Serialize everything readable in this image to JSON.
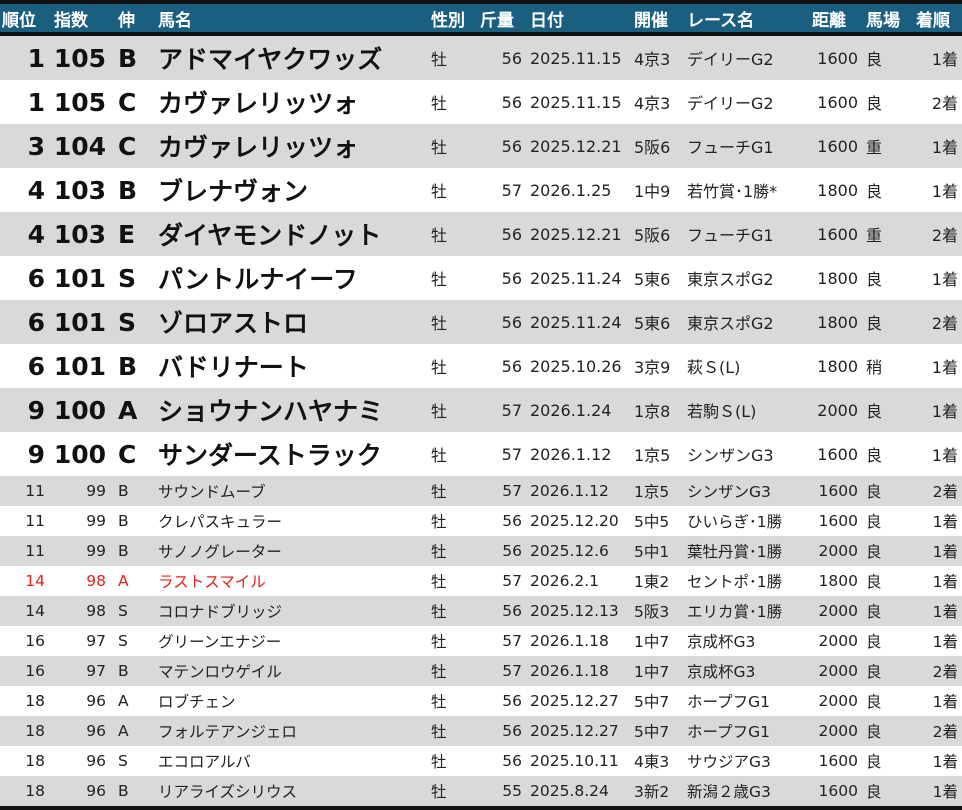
{
  "header": {
    "rank": "順位",
    "index": "指数",
    "growth": "伸",
    "name": "馬名",
    "sex": "性別",
    "weight": "斤量",
    "date": "日付",
    "meeting": "開催",
    "race": "レース名",
    "distance": "距離",
    "track": "馬場",
    "finish": "着順"
  },
  "colors": {
    "header_bg": "#1a5e80",
    "row_alt": "#d9d9d9",
    "highlight": "#e8201e"
  },
  "rows": [
    {
      "rank": "1",
      "index": "105",
      "growth": "B",
      "name": "アドマイヤクワッズ",
      "sex": "牡",
      "weight": "56",
      "date": "2025.11.15",
      "meeting": "4京3",
      "race": "デイリーG2",
      "distance": "1600",
      "track": "良",
      "finish": "1着"
    },
    {
      "rank": "1",
      "index": "105",
      "growth": "C",
      "name": "カヴァレリッツォ",
      "sex": "牡",
      "weight": "56",
      "date": "2025.11.15",
      "meeting": "4京3",
      "race": "デイリーG2",
      "distance": "1600",
      "track": "良",
      "finish": "2着"
    },
    {
      "rank": "3",
      "index": "104",
      "growth": "C",
      "name": "カヴァレリッツォ",
      "sex": "牡",
      "weight": "56",
      "date": "2025.12.21",
      "meeting": "5阪6",
      "race": "フューチG1",
      "distance": "1600",
      "track": "重",
      "finish": "1着"
    },
    {
      "rank": "4",
      "index": "103",
      "growth": "B",
      "name": "ブレナヴォン",
      "sex": "牡",
      "weight": "57",
      "date": "2026.1.25",
      "meeting": "1中9",
      "race": "若竹賞･1勝*",
      "distance": "1800",
      "track": "良",
      "finish": "1着"
    },
    {
      "rank": "4",
      "index": "103",
      "growth": "E",
      "name": "ダイヤモンドノット",
      "sex": "牡",
      "weight": "56",
      "date": "2025.12.21",
      "meeting": "5阪6",
      "race": "フューチG1",
      "distance": "1600",
      "track": "重",
      "finish": "2着"
    },
    {
      "rank": "6",
      "index": "101",
      "growth": "S",
      "name": "パントルナイーフ",
      "sex": "牡",
      "weight": "56",
      "date": "2025.11.24",
      "meeting": "5東6",
      "race": "東京スポG2",
      "distance": "1800",
      "track": "良",
      "finish": "1着"
    },
    {
      "rank": "6",
      "index": "101",
      "growth": "S",
      "name": "ゾロアストロ",
      "sex": "牡",
      "weight": "56",
      "date": "2025.11.24",
      "meeting": "5東6",
      "race": "東京スポG2",
      "distance": "1800",
      "track": "良",
      "finish": "2着"
    },
    {
      "rank": "6",
      "index": "101",
      "growth": "B",
      "name": "バドリナート",
      "sex": "牡",
      "weight": "56",
      "date": "2025.10.26",
      "meeting": "3京9",
      "race": "萩Ｓ(L)",
      "distance": "1800",
      "track": "稍",
      "finish": "1着"
    },
    {
      "rank": "9",
      "index": "100",
      "growth": "A",
      "name": "ショウナンハヤナミ",
      "sex": "牡",
      "weight": "57",
      "date": "2026.1.24",
      "meeting": "1京8",
      "race": "若駒Ｓ(L)",
      "distance": "2000",
      "track": "良",
      "finish": "1着"
    },
    {
      "rank": "9",
      "index": "100",
      "growth": "C",
      "name": "サンダーストラック",
      "sex": "牡",
      "weight": "57",
      "date": "2026.1.12",
      "meeting": "1京5",
      "race": "シンザンG3",
      "distance": "1600",
      "track": "良",
      "finish": "1着"
    },
    {
      "rank": "11",
      "index": "99",
      "growth": "B",
      "name": "サウンドムーブ",
      "sex": "牡",
      "weight": "57",
      "date": "2026.1.12",
      "meeting": "1京5",
      "race": "シンザンG3",
      "distance": "1600",
      "track": "良",
      "finish": "2着"
    },
    {
      "rank": "11",
      "index": "99",
      "growth": "B",
      "name": "クレパスキュラー",
      "sex": "牡",
      "weight": "56",
      "date": "2025.12.20",
      "meeting": "5中5",
      "race": "ひいらぎ･1勝",
      "distance": "1600",
      "track": "良",
      "finish": "1着"
    },
    {
      "rank": "11",
      "index": "99",
      "growth": "B",
      "name": "サノノグレーター",
      "sex": "牡",
      "weight": "56",
      "date": "2025.12.6",
      "meeting": "5中1",
      "race": "葉牡丹賞･1勝",
      "distance": "2000",
      "track": "良",
      "finish": "1着"
    },
    {
      "rank": "14",
      "index": "98",
      "growth": "A",
      "name": "ラストスマイル",
      "sex": "牡",
      "weight": "57",
      "date": "2026.2.1",
      "meeting": "1東2",
      "race": "セントポ･1勝",
      "distance": "1800",
      "track": "良",
      "finish": "1着",
      "highlight": true
    },
    {
      "rank": "14",
      "index": "98",
      "growth": "S",
      "name": "コロナドブリッジ",
      "sex": "牡",
      "weight": "56",
      "date": "2025.12.13",
      "meeting": "5阪3",
      "race": "エリカ賞･1勝",
      "distance": "2000",
      "track": "良",
      "finish": "1着"
    },
    {
      "rank": "16",
      "index": "97",
      "growth": "S",
      "name": "グリーンエナジー",
      "sex": "牡",
      "weight": "57",
      "date": "2026.1.18",
      "meeting": "1中7",
      "race": "京成杯G3",
      "distance": "2000",
      "track": "良",
      "finish": "1着"
    },
    {
      "rank": "16",
      "index": "97",
      "growth": "B",
      "name": "マテンロウゲイル",
      "sex": "牡",
      "weight": "57",
      "date": "2026.1.18",
      "meeting": "1中7",
      "race": "京成杯G3",
      "distance": "2000",
      "track": "良",
      "finish": "2着"
    },
    {
      "rank": "18",
      "index": "96",
      "growth": "A",
      "name": "ロブチェン",
      "sex": "牡",
      "weight": "56",
      "date": "2025.12.27",
      "meeting": "5中7",
      "race": "ホープフG1",
      "distance": "2000",
      "track": "良",
      "finish": "1着"
    },
    {
      "rank": "18",
      "index": "96",
      "growth": "A",
      "name": "フォルテアンジェロ",
      "sex": "牡",
      "weight": "56",
      "date": "2025.12.27",
      "meeting": "5中7",
      "race": "ホープフG1",
      "distance": "2000",
      "track": "良",
      "finish": "2着"
    },
    {
      "rank": "18",
      "index": "96",
      "growth": "S",
      "name": "エコロアルバ",
      "sex": "牡",
      "weight": "56",
      "date": "2025.10.11",
      "meeting": "4東3",
      "race": "サウジアG3",
      "distance": "1600",
      "track": "良",
      "finish": "1着"
    },
    {
      "rank": "18",
      "index": "96",
      "growth": "B",
      "name": "リアライズシリウス",
      "sex": "牡",
      "weight": "55",
      "date": "2025.8.24",
      "meeting": "3新2",
      "race": "新潟２歳G3",
      "distance": "1600",
      "track": "良",
      "finish": "1着"
    }
  ]
}
